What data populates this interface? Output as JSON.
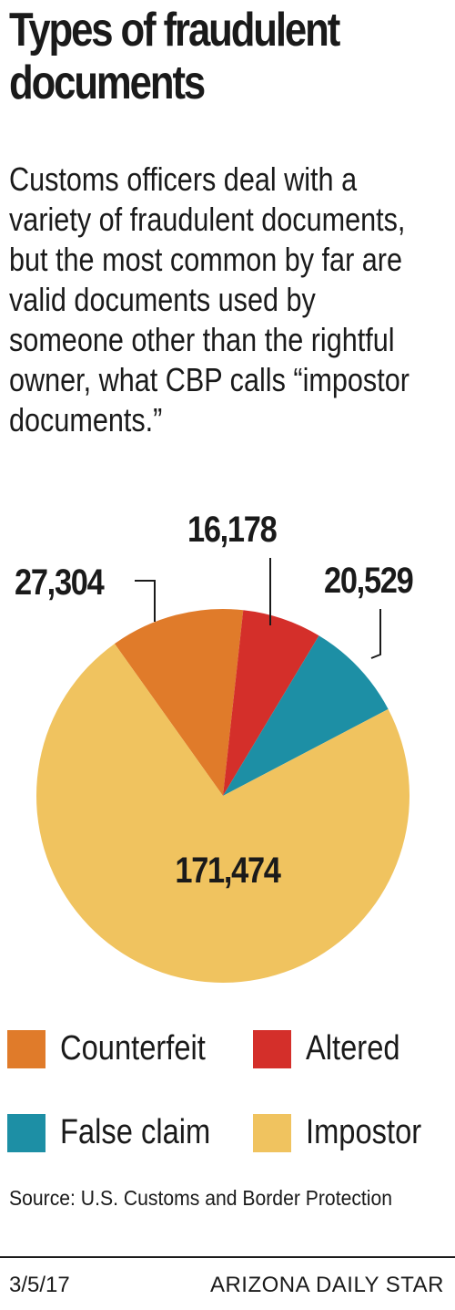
{
  "title": "Types of fraudulent documents",
  "subtitle": "Customs officers deal with a variety of fraudulent documents, but the most common by far are valid documents used by someone other than the rightful owner, what CBP calls “impostor documents.”",
  "chart_data": {
    "type": "pie",
    "slices": [
      {
        "name": "Counterfeit",
        "value": 27304,
        "label": "27,304",
        "color": "#e07b2a"
      },
      {
        "name": "Altered",
        "value": 16178,
        "label": "16,178",
        "color": "#d42f2a"
      },
      {
        "name": "False claim",
        "value": 20529,
        "label": "20,529",
        "color": "#1d8fa5"
      },
      {
        "name": "Impostor",
        "value": 171474,
        "label": "171,474",
        "color": "#f0c35f"
      }
    ]
  },
  "legend": [
    {
      "label": "Counterfeit",
      "color": "#e07b2a"
    },
    {
      "label": "Altered",
      "color": "#d42f2a"
    },
    {
      "label": "False claim",
      "color": "#1d8fa5"
    },
    {
      "label": "Impostor",
      "color": "#f0c35f"
    }
  ],
  "source": "Source: U.S. Customs and Border Protection",
  "footer": {
    "date": "3/5/17",
    "credit": "ARIZONA DAILY STAR"
  }
}
